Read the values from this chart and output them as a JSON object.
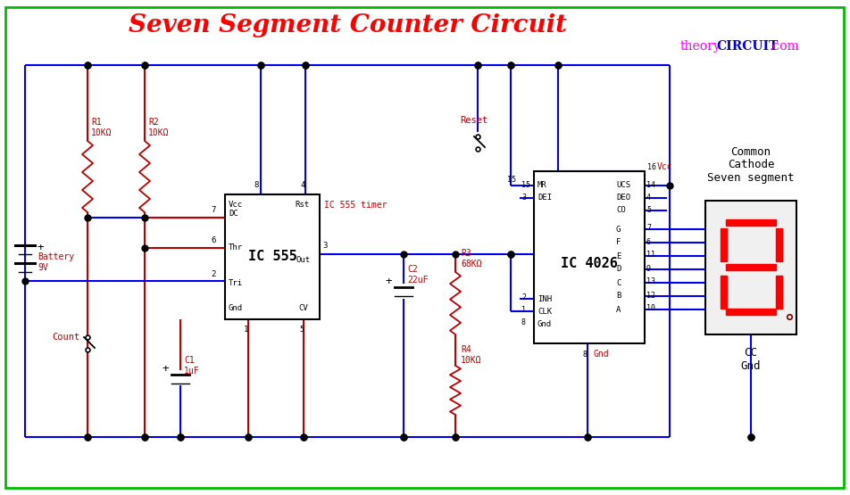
{
  "title": "Seven Segment Counter Circuit",
  "title_color": "#FF0000",
  "watermark_theory": "theory",
  "watermark_circuit": "CIRCUIT",
  "watermark_com": ".com",
  "wm_magenta": "#FF00FF",
  "wm_blue": "#0000CC",
  "bg": "#FFFFFF",
  "border": "#00BB00",
  "BL": "#0000EE",
  "RD": "#BB0000",
  "BK": "#000000",
  "seg": "#FF0000",
  "figsize": [
    9.53,
    5.55
  ],
  "dpi": 100
}
